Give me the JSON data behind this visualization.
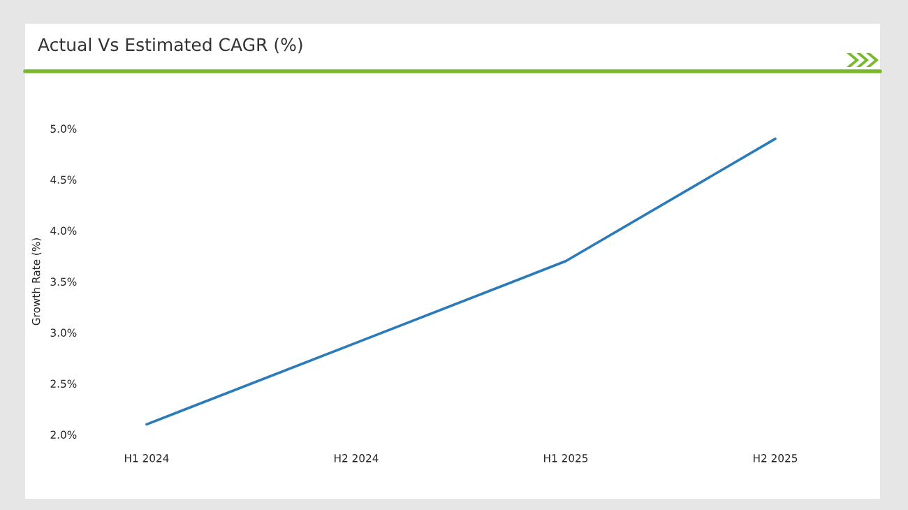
{
  "chart_data": {
    "type": "line",
    "title": "Actual Vs Estimated CAGR (%)",
    "ylabel": "Growth Rate (%)",
    "categories": [
      "H1 2024",
      "H2 2024",
      "H1 2025",
      "H2 2025"
    ],
    "series": [
      {
        "color": "#2b7bb9",
        "values": [
          2.1,
          2.9,
          3.7,
          4.9
        ]
      }
    ],
    "ylim": [
      2.0,
      5.0
    ],
    "yticks": [
      {
        "value": 2.0,
        "label": "2.0%"
      },
      {
        "value": 2.5,
        "label": "2.5%"
      },
      {
        "value": 3.0,
        "label": "3.0%"
      },
      {
        "value": 3.5,
        "label": "3.5%"
      },
      {
        "value": 4.0,
        "label": "4.0%"
      },
      {
        "value": 4.5,
        "label": "4.5%"
      },
      {
        "value": 5.0,
        "label": "5.0%"
      }
    ],
    "line_style": "solid"
  }
}
